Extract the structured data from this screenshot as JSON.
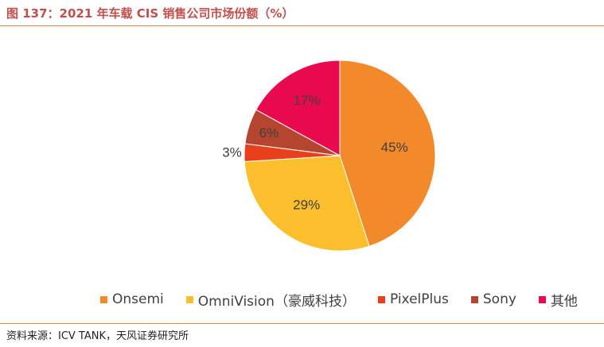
{
  "figure": {
    "title": "图 137：2021 年车载 CIS 销售公司市场份额（%）",
    "source": "资料来源：ICV TANK，天风证券研究所"
  },
  "colors": {
    "title": "#c0504d",
    "rule": "#e5873a"
  },
  "chart_data": {
    "type": "pie",
    "title": "",
    "unit": "%",
    "legend_position": "bottom",
    "slices": [
      {
        "name": "Onsemi",
        "value": 45,
        "label": "45%",
        "color": "#f28a2b"
      },
      {
        "name": "OmniVision（豪威科技）",
        "value": 29,
        "label": "29%",
        "color": "#fbbf2e"
      },
      {
        "name": "PixelPlus",
        "value": 3,
        "label": "3%",
        "color": "#e8401c"
      },
      {
        "name": "Sony",
        "value": 6,
        "label": "6%",
        "color": "#b5452e"
      },
      {
        "name": "其他",
        "value": 17,
        "label": "17%",
        "color": "#e8094f"
      }
    ]
  }
}
